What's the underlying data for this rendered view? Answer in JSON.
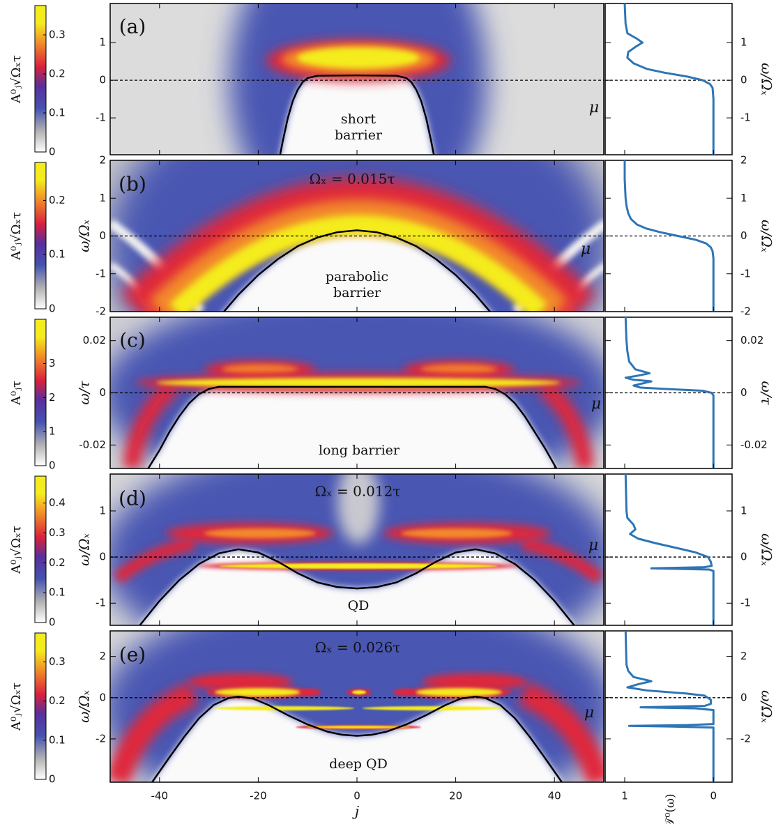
{
  "chart_data": [
    {
      "type": "heatmap",
      "label": "(a)",
      "annotation": [
        "short",
        "barrier"
      ],
      "ylabel": "ω/Ωₓ",
      "ylim": [
        -1.98,
        2.04
      ],
      "yticks": [
        -1,
        0,
        1
      ],
      "colorbar": {
        "label": "A⁰ⱼ√Ωₓτ",
        "lim": [
          0,
          0.375
        ],
        "ticks": [
          0,
          0.1,
          0.2,
          0.3
        ]
      },
      "mu": {
        "label": "μ",
        "value": 0
      },
      "curve": {
        "color": "#000000",
        "x": [
          -15.6,
          -15,
          -14,
          -13,
          -12,
          -11,
          -10,
          -8,
          0,
          8,
          10,
          11,
          12,
          13,
          14,
          15,
          15.6
        ],
        "values": [
          -2,
          -1.6,
          -1.0,
          -0.55,
          -0.25,
          -0.05,
          0.06,
          0.12,
          0.13,
          0.12,
          0.06,
          -0.05,
          -0.25,
          -0.55,
          -1.0,
          -1.6,
          -2
        ]
      },
      "transmission": {
        "color": "#2e75b6",
        "omega": [
          -1.98,
          -0.5,
          -0.2,
          -0.1,
          0,
          0.1,
          0.2,
          0.3,
          0.45,
          0.6,
          0.75,
          0.9,
          1.0,
          1.1,
          1.25,
          1.5,
          2.04
        ],
        "values": [
          0,
          0,
          0.01,
          0.04,
          0.12,
          0.3,
          0.55,
          0.75,
          0.9,
          0.97,
          0.96,
          0.87,
          0.8,
          0.86,
          0.97,
          0.99,
          1.0
        ]
      }
    },
    {
      "type": "heatmap",
      "label": "(b)",
      "annotation": [
        "parabolic",
        "barrier"
      ],
      "omega_label": "Ωₓ = 0.015τ",
      "ylabel": "ω/Ωₓ",
      "ylim": [
        -2,
        2
      ],
      "yticks": [
        -2,
        -1,
        0,
        1,
        2
      ],
      "colorbar": {
        "label": "A⁰ⱼ√Ωₓτ",
        "lim": [
          0,
          0.27
        ],
        "ticks": [
          0,
          0.1,
          0.2
        ]
      },
      "mu": {
        "label": "μ",
        "value": 0
      },
      "curve": {
        "color": "#000000",
        "x": [
          -28,
          -24,
          -20,
          -16,
          -12,
          -8,
          -4,
          0,
          4,
          8,
          12,
          16,
          20,
          24,
          28
        ],
        "values": [
          -2.16,
          -1.55,
          -1.03,
          -0.61,
          -0.27,
          -0.04,
          0.1,
          0.15,
          0.1,
          -0.04,
          -0.27,
          -0.61,
          -1.03,
          -1.55,
          -2.16
        ]
      },
      "transmission": {
        "color": "#2e75b6",
        "omega": [
          -2,
          -0.6,
          -0.4,
          -0.3,
          -0.2,
          -0.1,
          0,
          0.1,
          0.2,
          0.3,
          0.45,
          0.6,
          0.8,
          1.0,
          1.5,
          2
        ],
        "values": [
          0,
          0,
          0.01,
          0.03,
          0.08,
          0.2,
          0.4,
          0.6,
          0.76,
          0.86,
          0.93,
          0.96,
          0.98,
          0.99,
          1.0,
          1.0
        ]
      }
    },
    {
      "type": "heatmap",
      "label": "(c)",
      "annotation": [
        "long barrier"
      ],
      "ylabel": "ω/τ",
      "ylim": [
        -0.029,
        0.029
      ],
      "yticks": [
        -0.02,
        0,
        0.02
      ],
      "colorbar": {
        "label": "A⁰ⱼτ",
        "lim": [
          0,
          4.3
        ],
        "ticks": [
          0,
          1,
          2,
          3
        ]
      },
      "mu": {
        "label": "μ",
        "value": 0
      },
      "curve": {
        "color": "#000000",
        "x": [
          -42.3,
          -40,
          -38,
          -36,
          -34,
          -32,
          -30,
          -28,
          0,
          26,
          28,
          30,
          32,
          34,
          36,
          38,
          40.4
        ],
        "values": [
          -0.029,
          -0.022,
          -0.015,
          -0.009,
          -0.004,
          -0.0005,
          0.0015,
          0.0023,
          0.0023,
          0.0023,
          0.0015,
          -0.0005,
          -0.004,
          -0.009,
          -0.015,
          -0.021,
          -0.029
        ]
      },
      "transmission": {
        "color": "#2e75b6",
        "omega": [
          -0.029,
          -0.001,
          0,
          0.0008,
          0.0015,
          0.002,
          0.0028,
          0.0036,
          0.0044,
          0.005,
          0.0058,
          0.0066,
          0.0075,
          0.009,
          0.012,
          0.016,
          0.02,
          0.029
        ],
        "values": [
          0,
          0,
          0.02,
          0.12,
          0.55,
          0.82,
          0.9,
          0.8,
          0.7,
          0.9,
          0.99,
          0.85,
          0.72,
          0.88,
          0.95,
          0.97,
          0.98,
          0.99
        ]
      }
    },
    {
      "type": "heatmap",
      "label": "(d)",
      "annotation": [
        "QD"
      ],
      "omega_label": "Ωₓ = 0.012τ",
      "ylabel": "ω/Ωₓ",
      "ylim": [
        -1.48,
        1.8
      ],
      "yticks": [
        -1,
        0,
        1
      ],
      "colorbar": {
        "label": "A⁰ⱼ√Ωₓτ",
        "lim": [
          0,
          0.49
        ],
        "ticks": [
          0,
          0.1,
          0.2,
          0.3,
          0.4
        ]
      },
      "mu": {
        "label": "μ",
        "value": 0
      },
      "curve": {
        "color": "#000000",
        "x": [
          -44,
          -40,
          -36,
          -32,
          -28,
          -24,
          -20,
          -16,
          -12,
          -8,
          -4,
          0,
          4,
          8,
          12,
          16,
          20,
          24,
          28,
          32,
          36,
          40,
          44
        ],
        "values": [
          -1.48,
          -0.95,
          -0.5,
          -0.15,
          0.08,
          0.17,
          0.1,
          -0.1,
          -0.35,
          -0.55,
          -0.65,
          -0.68,
          -0.65,
          -0.55,
          -0.35,
          -0.1,
          0.1,
          0.17,
          0.08,
          -0.15,
          -0.5,
          -0.95,
          -1.48
        ]
      },
      "transmission": {
        "color": "#2e75b6",
        "omega": [
          -1.48,
          -0.3,
          -0.27,
          -0.245,
          -0.22,
          -0.19,
          -0.1,
          0,
          0.1,
          0.2,
          0.3,
          0.4,
          0.5,
          0.6,
          0.7,
          0.85,
          1.0,
          1.8
        ],
        "values": [
          0,
          0,
          0.05,
          0.7,
          0.1,
          0.02,
          0.03,
          0.06,
          0.2,
          0.42,
          0.65,
          0.85,
          0.94,
          0.88,
          0.9,
          0.97,
          0.98,
          0.99
        ]
      }
    },
    {
      "type": "heatmap",
      "label": "(e)",
      "annotation": [
        "deep QD"
      ],
      "omega_label": "Ωₓ = 0.026τ",
      "ylabel": "ω/Ωₓ",
      "ylim": [
        -4.1,
        3.24
      ],
      "yticks": [
        -2,
        0,
        2
      ],
      "xlabel": "j",
      "xlim": [
        -50,
        50
      ],
      "xticks": [
        -40,
        -20,
        0,
        20,
        40
      ],
      "colorbar": {
        "label": "A⁰ⱼ√Ωₓτ",
        "lim": [
          0,
          0.374
        ],
        "ticks": [
          0,
          0.1,
          0.2,
          0.3
        ]
      },
      "mu": {
        "label": "μ",
        "value": 0
      },
      "curve": {
        "color": "#000000",
        "x": [
          -41.5,
          -38,
          -35,
          -32,
          -29,
          -26,
          -24,
          -21,
          -18,
          -14,
          -10,
          -6,
          -3,
          0,
          3,
          6,
          10,
          14,
          18,
          21,
          24,
          26,
          29,
          32,
          35,
          38,
          41.5
        ],
        "values": [
          -4.1,
          -2.9,
          -1.9,
          -1.0,
          -0.35,
          -0.02,
          0.05,
          -0.05,
          -0.35,
          -0.85,
          -1.3,
          -1.65,
          -1.8,
          -1.85,
          -1.8,
          -1.65,
          -1.3,
          -0.85,
          -0.35,
          -0.05,
          0.05,
          -0.02,
          -0.35,
          -1.0,
          -1.9,
          -2.9,
          -4.1
        ]
      },
      "transmission": {
        "color": "#2e75b6",
        "xlabel": "𝒯⁰(ω)",
        "xlim": [
          1.22,
          -0.21
        ],
        "xticks": [
          1,
          0
        ],
        "omega": [
          -4.1,
          -1.45,
          -1.4,
          -1.37,
          -1.33,
          -1.28,
          -0.6,
          -0.52,
          -0.47,
          -0.4,
          -0.3,
          -0.1,
          0.1,
          0.2,
          0.35,
          0.5,
          0.65,
          0.8,
          1.0,
          1.3,
          1.6,
          3.24
        ],
        "values": [
          0,
          0,
          0.5,
          0.95,
          0.3,
          0,
          0,
          0.2,
          0.82,
          0.1,
          0.03,
          0.03,
          0.1,
          0.3,
          0.75,
          0.97,
          0.85,
          0.7,
          0.9,
          0.96,
          0.98,
          0.99
        ]
      }
    }
  ]
}
